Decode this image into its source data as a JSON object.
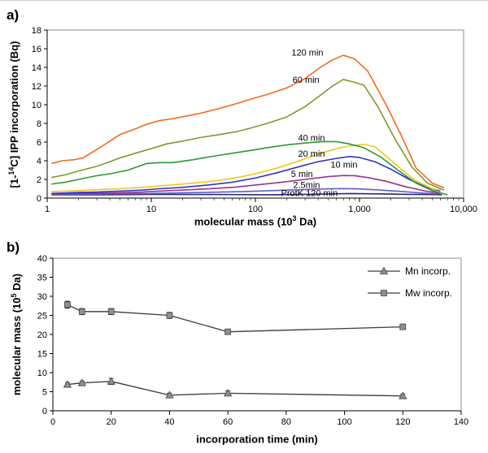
{
  "panels": {
    "a": {
      "label": "a)",
      "xlabel": {
        "pre": "molecular mass (10",
        "sup": "3",
        "post": " Da)"
      },
      "ylabel": {
        "pre": "[1-",
        "sup": "14",
        "post": "C] IPP incorporation (Bq)"
      }
    },
    "b": {
      "label": "b)",
      "xlabel": {
        "pre": "incorporation time (min)",
        "sup": "",
        "post": ""
      },
      "ylabel": {
        "pre": "molecular mass (10",
        "sup": "5",
        "post": " Da)"
      }
    }
  },
  "chart_data": [
    {
      "panel": "a",
      "type": "line",
      "title": "",
      "xlabel": "molecular mass (10^3 Da)",
      "ylabel": "[1-14C] IPP incorporation (Bq)",
      "x_scale": "log",
      "xlim": [
        1,
        10000
      ],
      "ylim": [
        0,
        18
      ],
      "x_ticks": [
        1,
        10,
        100,
        1000,
        10000
      ],
      "x_tick_labels": [
        "1",
        "10",
        "100",
        "1,000",
        "10,000"
      ],
      "y_ticks": [
        0,
        2,
        4,
        6,
        8,
        10,
        12,
        14,
        16,
        18
      ],
      "grid": false,
      "legend": null,
      "series": [
        {
          "name": "120 min",
          "color": "#F4691E",
          "x": [
            1.1,
            1.4,
            1.8,
            2.2,
            3,
            4,
            5,
            7,
            9,
            12,
            16,
            22,
            30,
            45,
            65,
            90,
            130,
            200,
            300,
            420,
            550,
            700,
            900,
            1200,
            1800,
            2500,
            3500,
            5000,
            6500
          ],
          "y": [
            3.7,
            4.0,
            4.1,
            4.3,
            5.2,
            6.1,
            6.8,
            7.4,
            7.9,
            8.3,
            8.5,
            8.8,
            9.1,
            9.6,
            10.1,
            10.6,
            11.1,
            11.8,
            12.8,
            14.0,
            14.8,
            15.3,
            14.9,
            13.6,
            10.0,
            6.8,
            3.2,
            1.6,
            1.1
          ]
        },
        {
          "name": "60 min",
          "color": "#7E9A2D",
          "x": [
            1.1,
            1.5,
            2,
            3,
            4,
            5,
            7,
            10,
            14,
            20,
            30,
            45,
            65,
            90,
            130,
            200,
            300,
            420,
            550,
            700,
            900,
            1100,
            1500,
            2200,
            3200,
            4500,
            6500
          ],
          "y": [
            2.2,
            2.5,
            2.9,
            3.4,
            3.9,
            4.3,
            4.8,
            5.3,
            5.8,
            6.1,
            6.5,
            6.8,
            7.1,
            7.5,
            8.0,
            8.7,
            9.8,
            11.0,
            12.0,
            12.7,
            12.4,
            12.1,
            9.8,
            6.3,
            3.3,
            1.6,
            0.85
          ]
        },
        {
          "name": "40 min",
          "color": "#2E9932",
          "x": [
            1.1,
            1.5,
            2,
            3,
            4,
            6,
            8,
            9,
            12,
            16,
            25,
            40,
            60,
            90,
            130,
            200,
            300,
            450,
            600,
            800,
            1100,
            1600,
            2400,
            3500,
            5000,
            7000
          ],
          "y": [
            1.5,
            1.7,
            2.0,
            2.4,
            2.6,
            3.0,
            3.5,
            3.7,
            3.8,
            3.8,
            4.1,
            4.5,
            4.8,
            5.1,
            5.4,
            5.7,
            5.9,
            6.05,
            6.05,
            5.8,
            5.4,
            4.4,
            2.9,
            1.6,
            0.8,
            0.35
          ]
        },
        {
          "name": "20 min",
          "color": "#EFC617",
          "x": [
            1.1,
            1.5,
            2,
            3,
            5,
            8,
            12,
            20,
            35,
            60,
            100,
            160,
            250,
            400,
            600,
            800,
            1100,
            1400,
            1800,
            2400,
            3400,
            5000,
            6000
          ],
          "y": [
            0.7,
            0.75,
            0.8,
            0.9,
            1.0,
            1.15,
            1.3,
            1.5,
            1.75,
            2.1,
            2.6,
            3.2,
            3.9,
            4.7,
            5.3,
            5.6,
            5.75,
            5.5,
            4.5,
            3.3,
            1.9,
            1.0,
            0.85
          ]
        },
        {
          "name": "10 min",
          "color": "#3333CC",
          "x": [
            1.1,
            1.5,
            2,
            3,
            5,
            8,
            12,
            20,
            35,
            60,
            100,
            160,
            250,
            400,
            600,
            800,
            1000,
            1400,
            2000,
            3000,
            4500,
            6000
          ],
          "y": [
            0.5,
            0.55,
            0.6,
            0.65,
            0.75,
            0.85,
            1.0,
            1.15,
            1.4,
            1.7,
            2.15,
            2.7,
            3.3,
            3.9,
            4.25,
            4.45,
            4.35,
            3.9,
            3.1,
            2.0,
            1.1,
            0.75
          ]
        },
        {
          "name": "5 min",
          "color": "#9C3387",
          "x": [
            1.1,
            2,
            4,
            8,
            15,
            30,
            60,
            100,
            180,
            300,
            500,
            700,
            900,
            1200,
            1800,
            2800,
            4500,
            6000
          ],
          "y": [
            0.45,
            0.5,
            0.55,
            0.65,
            0.8,
            0.95,
            1.15,
            1.4,
            1.7,
            2.0,
            2.3,
            2.42,
            2.4,
            2.2,
            1.8,
            1.2,
            0.7,
            0.55
          ]
        },
        {
          "name": "2.5min",
          "color": "#5F5FC4",
          "x": [
            1.1,
            2,
            4,
            10,
            30,
            80,
            200,
            400,
            700,
            1000,
            1600,
            2600,
            4500,
            6000
          ],
          "y": [
            0.4,
            0.42,
            0.45,
            0.5,
            0.6,
            0.7,
            0.85,
            0.97,
            1.02,
            0.98,
            0.85,
            0.7,
            0.5,
            0.45
          ]
        },
        {
          "name": "ProtK 120 min",
          "color": "#26267E",
          "x": [
            1.1,
            3,
            10,
            50,
            150,
            400,
            800,
            1500,
            3000,
            5000,
            6200
          ],
          "y": [
            0.35,
            0.35,
            0.4,
            0.38,
            0.35,
            0.42,
            0.48,
            0.45,
            0.4,
            0.38,
            0.35
          ]
        }
      ],
      "annotations": [
        {
          "text": "120 min",
          "x": 316,
          "y": 15.6
        },
        {
          "text": "60 min",
          "x": 306,
          "y": 12.7
        },
        {
          "text": "40 min",
          "x": 346,
          "y": 6.5
        },
        {
          "text": "20 min",
          "x": 346,
          "y": 4.8
        },
        {
          "text": "10 min",
          "x": 710,
          "y": 3.6
        },
        {
          "text": "5 min",
          "x": 280,
          "y": 2.6
        },
        {
          "text": "2.5min",
          "x": 310,
          "y": 1.45
        },
        {
          "text": "ProtK 120 min",
          "x": 330,
          "y": 0.55
        }
      ]
    },
    {
      "panel": "b",
      "type": "line",
      "title": "",
      "xlabel": "incorporation time (min)",
      "ylabel": "molecular mass (10^5 Da)",
      "x_scale": "linear",
      "xlim": [
        0,
        140
      ],
      "ylim": [
        0,
        40
      ],
      "x_ticks": [
        0,
        20,
        40,
        60,
        80,
        100,
        120,
        140
      ],
      "x_tick_labels": [
        "0",
        "20",
        "40",
        "60",
        "80",
        "100",
        "120",
        "140"
      ],
      "y_ticks": [
        0,
        5,
        10,
        15,
        20,
        25,
        30,
        35,
        40
      ],
      "grid": false,
      "legend": {
        "position": "top-right"
      },
      "series": [
        {
          "name": "Mn incorp.",
          "marker": "triangle",
          "color": "#3A3A3A",
          "marker_fill": "#8F8F8F",
          "x": [
            5,
            10,
            20,
            40,
            60,
            120
          ],
          "y": [
            6.9,
            7.3,
            7.7,
            4.1,
            4.6,
            3.9
          ],
          "yerr": [
            0.5,
            0.5,
            0.8,
            0.5,
            0.6,
            0.5
          ]
        },
        {
          "name": "Mw incorp.",
          "marker": "square",
          "color": "#3A3A3A",
          "marker_fill": "#8F8F8F",
          "x": [
            5,
            10,
            20,
            40,
            60,
            120
          ],
          "y": [
            27.8,
            26.0,
            26.0,
            25.0,
            20.7,
            22.0
          ],
          "yerr": [
            0.9,
            0.8,
            0.8,
            0.8,
            0.7,
            0.7
          ]
        }
      ]
    }
  ]
}
